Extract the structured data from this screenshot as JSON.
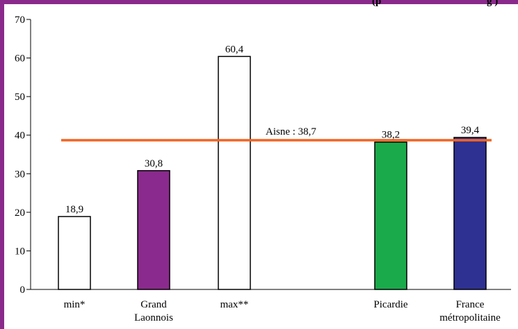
{
  "header_text": "(p",
  "header_text_right": "g )",
  "chart_data": {
    "type": "bar",
    "categories": [
      [
        "min*"
      ],
      [
        "Grand",
        "Laonnois"
      ],
      [
        "max**"
      ],
      [
        "Picardie"
      ],
      [
        "France",
        "métropolitaine"
      ]
    ],
    "values": [
      18.9,
      30.8,
      60.4,
      38.2,
      39.4
    ],
    "value_labels": [
      "18,9",
      "30,8",
      "60,4",
      "38,2",
      "39,4"
    ],
    "bar_colors": [
      "#ffffff",
      "#8b2a8e",
      "#ffffff",
      "#1aaa4b",
      "#2e3192"
    ],
    "ylim": [
      0,
      70
    ],
    "yticks": [
      0,
      10,
      20,
      30,
      40,
      50,
      60,
      70
    ],
    "reference_line": {
      "value": 38.7,
      "label": "Aisne : 38,7",
      "color": "#f26522"
    },
    "grid": false,
    "title": "",
    "xlabel": "",
    "ylabel": ""
  }
}
